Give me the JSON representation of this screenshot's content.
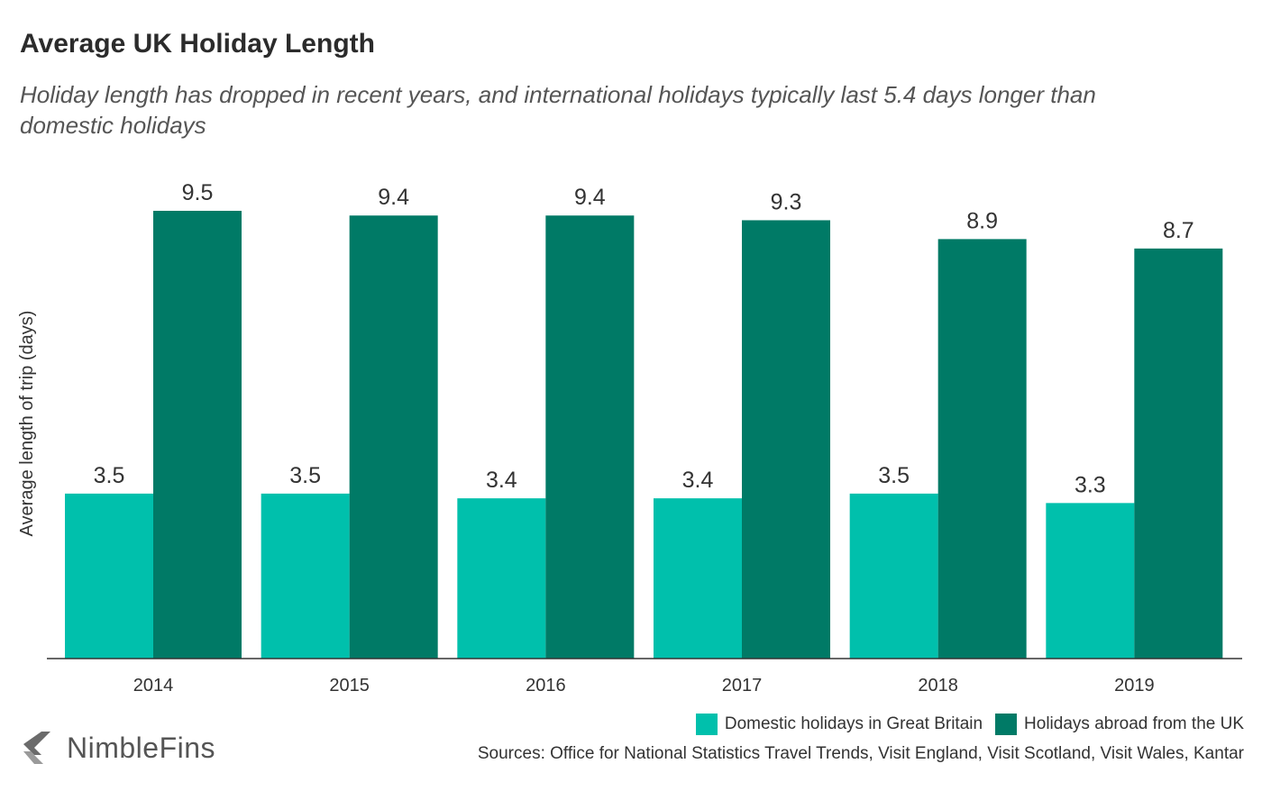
{
  "title": "Average UK Holiday Length",
  "subtitle": "Holiday length has dropped in recent years, and international holidays typically last 5.4 days longer than domestic holidays",
  "brand": {
    "name": "NimbleFins",
    "icon": "chevron-left-logo-icon"
  },
  "sources": "Sources: Office for National Statistics Travel Trends, Visit England, Visit Scotland, Visit Wales, Kantar",
  "colors": {
    "domestic": "#00c0ac",
    "abroad": "#007a66",
    "axis": "#333333"
  },
  "chart_data": {
    "type": "bar",
    "title": "Average UK Holiday Length",
    "ylabel": "Average length of trip (days)",
    "xlabel": "",
    "categories": [
      "2014",
      "2015",
      "2016",
      "2017",
      "2018",
      "2019"
    ],
    "series": [
      {
        "name": "Domestic holidays in Great Britain",
        "values": [
          3.5,
          3.5,
          3.4,
          3.4,
          3.5,
          3.3
        ]
      },
      {
        "name": "Holidays abroad from the UK",
        "values": [
          9.5,
          9.4,
          9.4,
          9.3,
          8.9,
          8.7
        ]
      }
    ],
    "ylim": [
      0,
      10
    ],
    "grid": false,
    "legend_position": "bottom-right"
  }
}
